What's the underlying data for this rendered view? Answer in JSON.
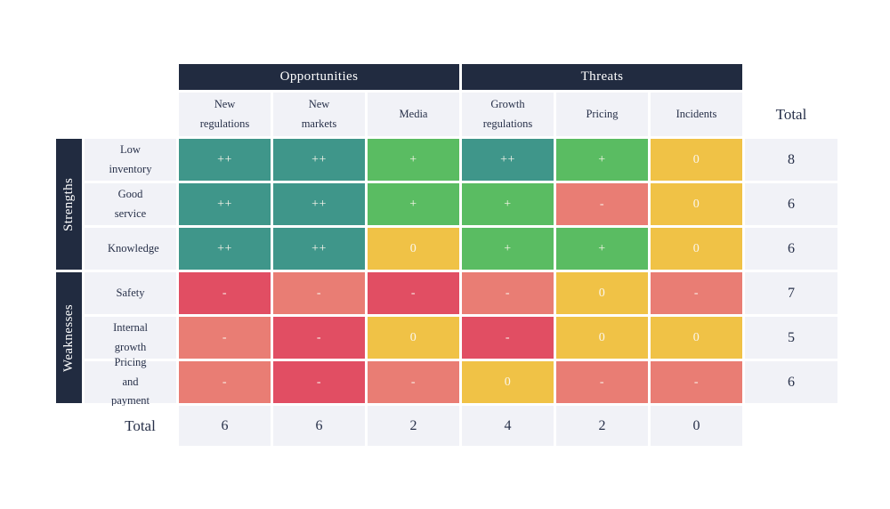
{
  "matrix": {
    "column_group_labels": [
      "Opportunities",
      "Threats"
    ],
    "columns": [
      "New regulations",
      "New markets",
      "Media",
      "Growth regulations",
      "Pricing",
      "Incidents"
    ],
    "total_header": "Total",
    "total_row_label": "Total",
    "row_groups": [
      {
        "label": "Strengths",
        "rows": [
          {
            "label": "Low inventory",
            "cells": [
              {
                "symbol": "++",
                "tone": "teal"
              },
              {
                "symbol": "++",
                "tone": "teal"
              },
              {
                "symbol": "+",
                "tone": "green"
              },
              {
                "symbol": "++",
                "tone": "teal"
              },
              {
                "symbol": "+",
                "tone": "green"
              },
              {
                "symbol": "0",
                "tone": "yellow"
              }
            ],
            "total": "8"
          },
          {
            "label": "Good service",
            "cells": [
              {
                "symbol": "++",
                "tone": "teal"
              },
              {
                "symbol": "++",
                "tone": "teal"
              },
              {
                "symbol": "+",
                "tone": "green"
              },
              {
                "symbol": "+",
                "tone": "green"
              },
              {
                "symbol": "-",
                "tone": "salmon"
              },
              {
                "symbol": "0",
                "tone": "yellow"
              }
            ],
            "total": "6"
          },
          {
            "label": "Knowledge",
            "cells": [
              {
                "symbol": "++",
                "tone": "teal"
              },
              {
                "symbol": "++",
                "tone": "teal"
              },
              {
                "symbol": "0",
                "tone": "yellow"
              },
              {
                "symbol": "+",
                "tone": "green"
              },
              {
                "symbol": "+",
                "tone": "green"
              },
              {
                "symbol": "0",
                "tone": "yellow"
              }
            ],
            "total": "6"
          }
        ]
      },
      {
        "label": "Weaknesses",
        "rows": [
          {
            "label": "Safety",
            "cells": [
              {
                "symbol": "-",
                "tone": "red"
              },
              {
                "symbol": "-",
                "tone": "salmon"
              },
              {
                "symbol": "-",
                "tone": "red"
              },
              {
                "symbol": "-",
                "tone": "salmon"
              },
              {
                "symbol": "0",
                "tone": "yellow"
              },
              {
                "symbol": "-",
                "tone": "salmon"
              }
            ],
            "total": "7"
          },
          {
            "label": "Internal growth",
            "cells": [
              {
                "symbol": "-",
                "tone": "salmon"
              },
              {
                "symbol": "-",
                "tone": "red"
              },
              {
                "symbol": "0",
                "tone": "yellow"
              },
              {
                "symbol": "-",
                "tone": "red"
              },
              {
                "symbol": "0",
                "tone": "yellow"
              },
              {
                "symbol": "0",
                "tone": "yellow"
              }
            ],
            "total": "5"
          },
          {
            "label": "Pricing and payment",
            "cells": [
              {
                "symbol": "-",
                "tone": "salmon"
              },
              {
                "symbol": "-",
                "tone": "red"
              },
              {
                "symbol": "-",
                "tone": "salmon"
              },
              {
                "symbol": "0",
                "tone": "yellow"
              },
              {
                "symbol": "-",
                "tone": "salmon"
              },
              {
                "symbol": "-",
                "tone": "salmon"
              }
            ],
            "total": "6"
          }
        ]
      }
    ],
    "column_totals": [
      "6",
      "6",
      "2",
      "4",
      "2",
      "0"
    ]
  },
  "colors": {
    "teal": "#3f968a",
    "green": "#5abc62",
    "yellow": "#f0c246",
    "salmon": "#e97d74",
    "red": "#e14e63",
    "header_bg": "#212b40",
    "light_bg": "#f1f2f7"
  }
}
